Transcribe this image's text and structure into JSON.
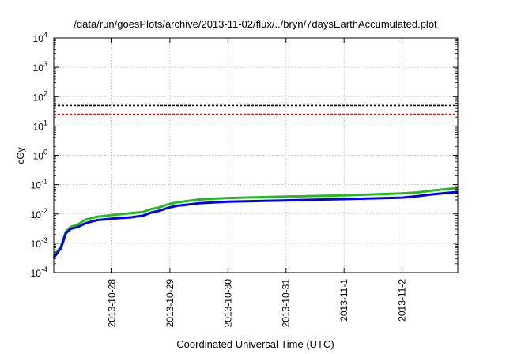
{
  "chart_data": {
    "type": "line",
    "title": "/data/run/goesPlots/archive/2013-11-02/flux/../bryn/7daysEarthAccumulated.plot",
    "xlabel": "Coordinated Universal Time (UTC)",
    "ylabel": "cGy",
    "yscale": "log",
    "ylim": [
      0.0001,
      10000
    ],
    "xlim": [
      "2013-10-27T00:00",
      "2013-11-02T23:00"
    ],
    "grid": true,
    "x_ticks": [
      {
        "label": "2013-10-28",
        "at": "2013-10-28T00:00"
      },
      {
        "label": "2013-10-29",
        "at": "2013-10-29T00:00"
      },
      {
        "label": "2013-10-30",
        "at": "2013-10-30T00:00"
      },
      {
        "label": "2013-10-31",
        "at": "2013-10-31T00:00"
      },
      {
        "label": "2013-11-1",
        "at": "2013-11-01T00:00"
      },
      {
        "label": "2013-11-2",
        "at": "2013-11-02T00:00"
      }
    ],
    "y_ticks": [
      {
        "base": "10",
        "exp": "-4",
        "value": 0.0001
      },
      {
        "base": "10",
        "exp": "-3",
        "value": 0.001
      },
      {
        "base": "10",
        "exp": "-2",
        "value": 0.01
      },
      {
        "base": "10",
        "exp": "-1",
        "value": 0.1
      },
      {
        "base": "10",
        "exp": "0",
        "value": 1
      },
      {
        "base": "10",
        "exp": "1",
        "value": 10
      },
      {
        "base": "10",
        "exp": "2",
        "value": 100
      },
      {
        "base": "10",
        "exp": "3",
        "value": 1000
      },
      {
        "base": "10",
        "exp": "4",
        "value": 10000
      }
    ],
    "threshold_lines": [
      {
        "value": 50,
        "color": "#000000",
        "style": "dashed"
      },
      {
        "value": 25,
        "color": "#ff0000",
        "style": "dashed"
      }
    ],
    "series": [
      {
        "color": "#22bb22",
        "x": [
          "2013-10-27T00:00",
          "2013-10-27T03:00",
          "2013-10-27T05:00",
          "2013-10-27T07:00",
          "2013-10-27T10:00",
          "2013-10-27T13:00",
          "2013-10-27T16:00",
          "2013-10-27T18:00",
          "2013-10-28T00:00",
          "2013-10-28T08:00",
          "2013-10-28T13:00",
          "2013-10-28T16:00",
          "2013-10-28T20:00",
          "2013-10-28T23:00",
          "2013-10-29T03:00",
          "2013-10-29T08:00",
          "2013-10-29T12:00",
          "2013-10-29T18:00",
          "2013-10-30T00:00",
          "2013-10-31T00:00",
          "2013-11-01T00:00",
          "2013-11-02T00:00",
          "2013-11-02T06:00",
          "2013-11-02T12:00",
          "2013-11-02T18:00",
          "2013-11-02T23:00"
        ],
        "y": [
          0.00037,
          0.0008,
          0.0025,
          0.0036,
          0.0044,
          0.0063,
          0.0074,
          0.008,
          0.0092,
          0.0106,
          0.0118,
          0.0145,
          0.017,
          0.021,
          0.025,
          0.028,
          0.031,
          0.033,
          0.035,
          0.039,
          0.043,
          0.05,
          0.054,
          0.062,
          0.07,
          0.076
        ]
      },
      {
        "color": "#0000ee",
        "x": [
          "2013-10-27T00:00",
          "2013-10-27T03:00",
          "2013-10-27T05:00",
          "2013-10-27T07:00",
          "2013-10-27T10:00",
          "2013-10-27T13:00",
          "2013-10-27T16:00",
          "2013-10-27T18:00",
          "2013-10-28T00:00",
          "2013-10-28T08:00",
          "2013-10-28T13:00",
          "2013-10-28T16:00",
          "2013-10-28T20:00",
          "2013-10-28T23:00",
          "2013-10-29T03:00",
          "2013-10-29T08:00",
          "2013-10-29T12:00",
          "2013-10-29T18:00",
          "2013-10-30T00:00",
          "2013-10-31T00:00",
          "2013-11-01T00:00",
          "2013-11-02T00:00",
          "2013-11-02T06:00",
          "2013-11-02T12:00",
          "2013-11-02T18:00",
          "2013-11-02T23:00"
        ],
        "y": [
          0.00032,
          0.0007,
          0.0022,
          0.0031,
          0.0036,
          0.0048,
          0.0056,
          0.0062,
          0.0069,
          0.0077,
          0.0088,
          0.011,
          0.013,
          0.016,
          0.019,
          0.021,
          0.023,
          0.0245,
          0.026,
          0.029,
          0.032,
          0.036,
          0.04,
          0.046,
          0.052,
          0.056
        ]
      }
    ]
  }
}
